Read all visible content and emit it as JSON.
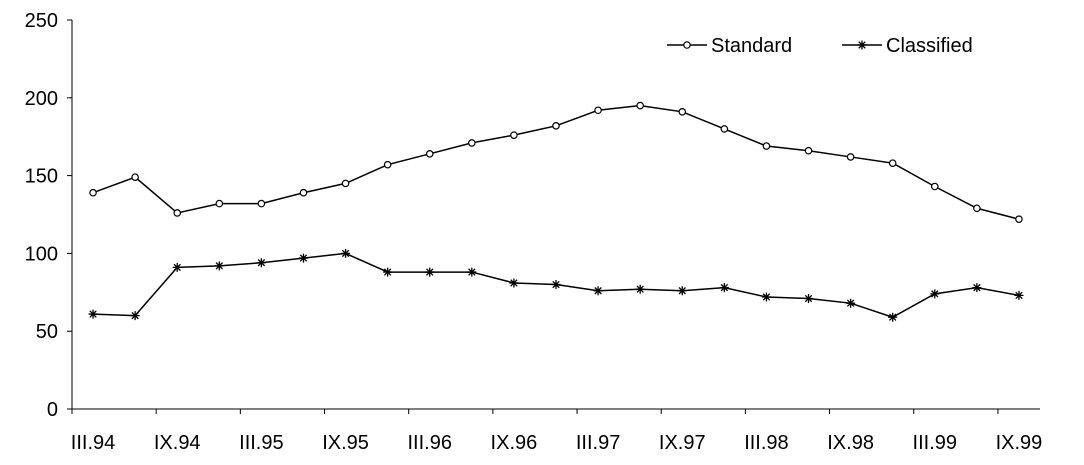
{
  "chart_data": {
    "type": "line",
    "title": "",
    "xlabel": "",
    "ylabel": "",
    "ylim": [
      0,
      250
    ],
    "yticks": [
      0,
      50,
      100,
      150,
      200,
      250
    ],
    "x": [
      "III.94",
      "VI.94",
      "IX.94",
      "XII.94",
      "III.95",
      "VI.95",
      "IX.95",
      "XII.95",
      "III.96",
      "VI.96",
      "IX.96",
      "XII.96",
      "III.97",
      "VI.97",
      "IX.97",
      "XII.97",
      "III.98",
      "VI.98",
      "IX.98",
      "XII.98",
      "III.99",
      "VI.99",
      "IX.99"
    ],
    "xtick_labels": [
      "III.94",
      "IX.94",
      "III.95",
      "IX.95",
      "III.96",
      "IX.96",
      "III.97",
      "IX.97",
      "III.98",
      "IX.98",
      "III.99",
      "IX.99"
    ],
    "series": [
      {
        "name": "Standard",
        "marker": "circle",
        "values": [
          139,
          149,
          126,
          132,
          132,
          139,
          145,
          157,
          164,
          171,
          176,
          182,
          192,
          195,
          191,
          180,
          169,
          166,
          162,
          158,
          143,
          129,
          122
        ]
      },
      {
        "name": "Classified",
        "marker": "asterisk",
        "values": [
          61,
          60,
          91,
          92,
          94,
          97,
          100,
          88,
          88,
          88,
          81,
          80,
          76,
          77,
          76,
          78,
          72,
          71,
          68,
          59,
          74,
          78,
          73
        ]
      }
    ],
    "grid": false,
    "legend_position": "top-right",
    "colors": {
      "line": "#000000",
      "background": "#ffffff"
    }
  }
}
